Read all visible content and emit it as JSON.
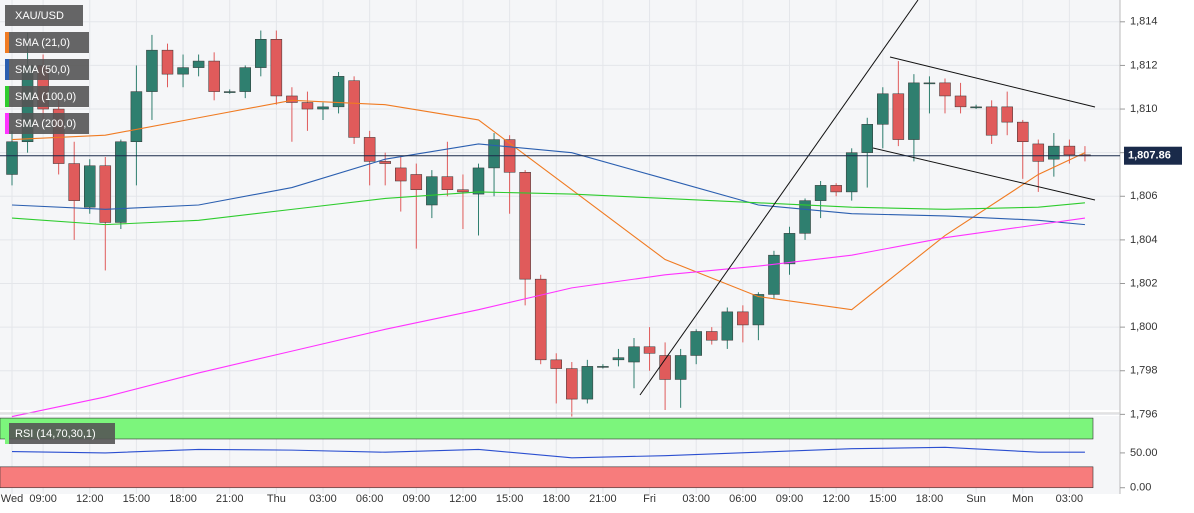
{
  "chart_data": [
    {
      "type": "candlestick",
      "symbol": "XAU/USD",
      "categories": [
        "Wed",
        null,
        "09:00",
        null,
        null,
        "12:00",
        null,
        null,
        "15:00",
        null,
        null,
        "18:00",
        null,
        null,
        "21:00",
        null,
        null,
        "Thu",
        null,
        null,
        "03:00",
        null,
        null,
        "06:00",
        null,
        null,
        "09:00",
        null,
        null,
        "12:00",
        null,
        null,
        "15:00",
        null,
        null,
        "18:00",
        null,
        null,
        "21:00",
        null,
        null,
        "Fri",
        null,
        null,
        "03:00",
        null,
        null,
        "06:00",
        null,
        null,
        "09:00",
        null,
        null,
        "12:00",
        null,
        null,
        "15:00",
        null,
        null,
        "18:00",
        null,
        null,
        "Sun",
        null,
        null,
        "Mon",
        null,
        null,
        "03:00",
        null
      ],
      "ohlc": [
        [
          1807.0,
          1809,
          1806.5,
          1808.5
        ],
        [
          1808.5,
          1813.5,
          1808,
          1812
        ],
        [
          1812,
          1812.5,
          1809.5,
          1810
        ],
        [
          1810,
          1810.5,
          1807,
          1807.5
        ],
        [
          1807.5,
          1808.5,
          1804,
          1805.8
        ],
        [
          1805.5,
          1807.7,
          1805.2,
          1807.4
        ],
        [
          1807.4,
          1807.8,
          1802.6,
          1804.8
        ],
        [
          1804.8,
          1808.6,
          1804.5,
          1808.5
        ],
        [
          1808.5,
          1812,
          1806.5,
          1810.8
        ],
        [
          1810.8,
          1813.4,
          1809.5,
          1812.7
        ],
        [
          1812.7,
          1813,
          1811,
          1811.6
        ],
        [
          1811.6,
          1812.5,
          1811,
          1811.9
        ],
        [
          1811.9,
          1812.5,
          1811.5,
          1812.2
        ],
        [
          1812.2,
          1812.6,
          1810.4,
          1810.8
        ],
        [
          1810.8,
          1810.9,
          1810.7,
          1810.8
        ],
        [
          1810.8,
          1812,
          1810.5,
          1811.9
        ],
        [
          1811.9,
          1813.6,
          1811.5,
          1813.2
        ],
        [
          1813.2,
          1813.6,
          1810.2,
          1810.6
        ],
        [
          1810.6,
          1811,
          1808.5,
          1810.3
        ],
        [
          1810.3,
          1810.8,
          1809,
          1810
        ],
        [
          1810,
          1810.3,
          1809.5,
          1810.1
        ],
        [
          1810.1,
          1811.7,
          1809.8,
          1811.5
        ],
        [
          1811.3,
          1811.5,
          1808.4,
          1808.7
        ],
        [
          1808.7,
          1809,
          1806.5,
          1807.6
        ],
        [
          1807.6,
          1808,
          1806.5,
          1807.5
        ],
        [
          1807.3,
          1807.8,
          1805.3,
          1806.7
        ],
        [
          1807,
          1807.5,
          1803.6,
          1806.3
        ],
        [
          1805.6,
          1807.2,
          1805,
          1806.9
        ],
        [
          1806.9,
          1808.5,
          1806,
          1806.3
        ],
        [
          1806.3,
          1807,
          1804.5,
          1806.2
        ],
        [
          1806.1,
          1807.5,
          1804.2,
          1807.3
        ],
        [
          1807.3,
          1808.9,
          1806,
          1808.6
        ],
        [
          1808.6,
          1808.8,
          1805.2,
          1807.1
        ],
        [
          1807.1,
          1807.2,
          1801,
          1802.2
        ],
        [
          1802.2,
          1802.4,
          1798.3,
          1798.5
        ],
        [
          1798.5,
          1798.8,
          1796.5,
          1798.1
        ],
        [
          1798.1,
          1798.4,
          1795.9,
          1796.7
        ],
        [
          1796.7,
          1798.5,
          1796.5,
          1798.2
        ],
        [
          1798.2,
          1798.3,
          1798.1,
          1798.2
        ],
        [
          1798.5,
          1799,
          1798.2,
          1798.6
        ],
        [
          1798.4,
          1799.5,
          1797.2,
          1799.1
        ],
        [
          1799.1,
          1800,
          1798,
          1798.8
        ],
        [
          1798.7,
          1799.3,
          1796.2,
          1797.6
        ],
        [
          1797.6,
          1799,
          1796.3,
          1798.7
        ],
        [
          1798.7,
          1799.9,
          1798.3,
          1799.8
        ],
        [
          1799.8,
          1800,
          1799.2,
          1799.4
        ],
        [
          1799.4,
          1800.9,
          1799,
          1800.7
        ],
        [
          1800.7,
          1801,
          1799.3,
          1800.1
        ],
        [
          1800.1,
          1801.6,
          1799.4,
          1801.5
        ],
        [
          1801.5,
          1803.5,
          1801.3,
          1803.3
        ],
        [
          1802.9,
          1804.6,
          1802.4,
          1804.3
        ],
        [
          1804.3,
          1805.9,
          1804,
          1805.8
        ],
        [
          1805.8,
          1806.7,
          1805,
          1806.5
        ],
        [
          1806.5,
          1806.6,
          1806,
          1806.2
        ],
        [
          1806.2,
          1808.2,
          1805.8,
          1808
        ],
        [
          1808,
          1809.6,
          1806.4,
          1809.3
        ],
        [
          1809.3,
          1811,
          1808.2,
          1810.7
        ],
        [
          1810.7,
          1812.2,
          1808.3,
          1808.6
        ],
        [
          1808.6,
          1811.6,
          1807.6,
          1811.2
        ],
        [
          1811.2,
          1811.5,
          1809.8,
          1811.2
        ],
        [
          1811.2,
          1811.4,
          1809.8,
          1810.6
        ],
        [
          1810.6,
          1811.2,
          1809.8,
          1810.1
        ],
        [
          1810.1,
          1810.2,
          1810,
          1810.1
        ],
        [
          1810.1,
          1810.4,
          1808.4,
          1808.8
        ],
        [
          1810.1,
          1810.8,
          1808.8,
          1809.4
        ],
        [
          1809.4,
          1809.5,
          1806.8,
          1808.5
        ],
        [
          1808.4,
          1808.6,
          1806.2,
          1807.6
        ],
        [
          1807.7,
          1808.9,
          1806.9,
          1808.3
        ],
        [
          1808.3,
          1808.6,
          1807.5,
          1807.9
        ],
        [
          1807.9,
          1808.3,
          1807.6,
          1807.86
        ]
      ],
      "up_color": "#2f7f6f",
      "down_color": "#e05b5b",
      "series": [
        {
          "name": "SMA (21,0)",
          "color": "#f07b22",
          "x": [
            0,
            6,
            12,
            18,
            24,
            30,
            36,
            42,
            48,
            54,
            60,
            66,
            69
          ],
          "values": [
            1808.6,
            1808.8,
            1809.6,
            1810.4,
            1810.2,
            1809.5,
            1806.3,
            1803.1,
            1801.4,
            1800.8,
            1804.2,
            1807.0,
            1808.0
          ]
        },
        {
          "name": "SMA (50,0)",
          "color": "#2b5fb0",
          "x": [
            0,
            6,
            12,
            18,
            24,
            30,
            36,
            42,
            48,
            54,
            60,
            66,
            69
          ],
          "values": [
            1805.6,
            1805.4,
            1805.6,
            1806.4,
            1807.7,
            1808.4,
            1808.0,
            1806.8,
            1805.6,
            1805.2,
            1805.1,
            1804.9,
            1804.7
          ]
        },
        {
          "name": "SMA (100,0)",
          "color": "#2ecc2e",
          "x": [
            0,
            6,
            12,
            18,
            24,
            30,
            36,
            42,
            48,
            54,
            60,
            66,
            69
          ],
          "values": [
            1805.0,
            1804.7,
            1804.9,
            1805.4,
            1805.9,
            1806.2,
            1806.1,
            1805.9,
            1805.7,
            1805.5,
            1805.4,
            1805.5,
            1805.7
          ]
        },
        {
          "name": "SMA (200,0)",
          "color": "#ff33ff",
          "x": [
            0,
            6,
            12,
            18,
            24,
            30,
            36,
            42,
            48,
            54,
            60,
            66,
            69
          ],
          "values": [
            1795.9,
            1796.8,
            1797.9,
            1798.9,
            1799.9,
            1800.8,
            1801.8,
            1802.4,
            1802.8,
            1803.3,
            1804.1,
            1804.7,
            1805.0
          ]
        }
      ],
      "last_price": {
        "value": 1807.86,
        "label": "1,807.86"
      },
      "ylim": [
        1796.2,
        1815.0
      ],
      "yticks": [
        {
          "value": 1796,
          "label": "1,796"
        },
        {
          "value": 1798,
          "label": "1,798"
        },
        {
          "value": 1800,
          "label": "1,800"
        },
        {
          "value": 1802,
          "label": "1,802"
        },
        {
          "value": 1804,
          "label": "1,804"
        },
        {
          "value": 1806,
          "label": "1,806"
        },
        {
          "value": 1808,
          "label": "1,808"
        },
        {
          "value": 1810,
          "label": "1,810"
        },
        {
          "value": 1812,
          "label": "1,812"
        },
        {
          "value": 1814,
          "label": "1,814"
        }
      ],
      "grid": true
    },
    {
      "type": "line",
      "series": [
        {
          "name": "RSI (14,70,30,1)",
          "color": "#2b4fd0",
          "x": [
            0,
            6,
            12,
            18,
            24,
            30,
            36,
            42,
            48,
            54,
            60,
            66,
            69
          ],
          "values": [
            52,
            50,
            55,
            54,
            51,
            55,
            43,
            46,
            51,
            56,
            58,
            51,
            51
          ]
        }
      ],
      "bands": [
        {
          "range": [
            70,
            100
          ],
          "color": "#7cf57c"
        },
        {
          "range": [
            0,
            30
          ],
          "color": "#f77c7c"
        }
      ],
      "ylim": [
        -9,
        103
      ],
      "yticks": [
        {
          "value": 50,
          "label": "50.00"
        },
        {
          "value": 0,
          "label": "0.00"
        }
      ]
    }
  ]
}
